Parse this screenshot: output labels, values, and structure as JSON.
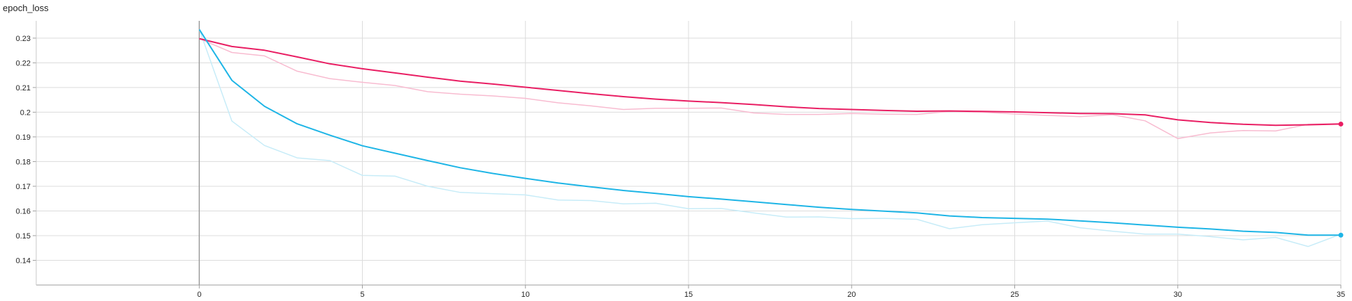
{
  "chart_data": {
    "type": "line",
    "title": "epoch_loss",
    "x_ticks": [
      0,
      5,
      10,
      15,
      20,
      25,
      30,
      35
    ],
    "y_ticks": [
      0.14,
      0.15,
      0.16,
      0.17,
      0.18,
      0.19,
      0.2,
      0.21,
      0.22,
      0.23
    ],
    "y_tick_labels": [
      "0.14",
      "0.15",
      "0.16",
      "0.17",
      "0.18",
      "0.19",
      "0.2",
      "0.21",
      "0.22",
      "0.23"
    ],
    "xlim": [
      -5,
      35
    ],
    "ylim": [
      0.13,
      0.237
    ],
    "grid": true,
    "series": [
      {
        "color": "#e91e63",
        "raw_color": "#f8bbd0",
        "x": [
          0,
          1,
          2,
          3,
          4,
          5,
          6,
          7,
          8,
          9,
          10,
          11,
          12,
          13,
          14,
          15,
          16,
          17,
          18,
          19,
          20,
          21,
          22,
          23,
          24,
          25,
          26,
          27,
          28,
          29,
          30,
          31,
          32,
          33,
          34,
          35
        ],
        "smoothed": [
          0.2298,
          0.2266,
          0.2251,
          0.2224,
          0.2196,
          0.2176,
          0.2159,
          0.2142,
          0.2126,
          0.2114,
          0.2101,
          0.2088,
          0.2075,
          0.2063,
          0.2053,
          0.2045,
          0.2039,
          0.2031,
          0.2022,
          0.2015,
          0.2011,
          0.2007,
          0.2004,
          0.2005,
          0.2003,
          0.2001,
          0.1998,
          0.1995,
          0.1994,
          0.1989,
          0.1969,
          0.1958,
          0.1951,
          0.1947,
          0.1949,
          0.1952
        ],
        "raw": [
          0.2298,
          0.2242,
          0.2228,
          0.2166,
          0.2136,
          0.2121,
          0.2108,
          0.2083,
          0.2073,
          0.2066,
          0.2056,
          0.2038,
          0.2026,
          0.2011,
          0.2016,
          0.2016,
          0.2017,
          0.1997,
          0.1991,
          0.1991,
          0.1995,
          0.1992,
          0.1991,
          0.2003,
          0.2,
          0.1993,
          0.1987,
          0.1982,
          0.199,
          0.1965,
          0.1893,
          0.1916,
          0.1926,
          0.1924,
          0.1951,
          0.1954
        ]
      },
      {
        "color": "#1eb5e6",
        "raw_color": "#c7ecf8",
        "x": [
          0,
          1,
          2,
          3,
          4,
          5,
          6,
          7,
          8,
          9,
          10,
          11,
          12,
          13,
          14,
          15,
          16,
          17,
          18,
          19,
          20,
          21,
          22,
          23,
          24,
          25,
          26,
          27,
          28,
          29,
          30,
          31,
          32,
          33,
          34,
          35
        ],
        "smoothed": [
          0.2335,
          0.2129,
          0.2024,
          0.1953,
          0.1907,
          0.1864,
          0.1834,
          0.1804,
          0.1775,
          0.1752,
          0.1732,
          0.1713,
          0.1698,
          0.1683,
          0.1671,
          0.1658,
          0.1648,
          0.1637,
          0.1626,
          0.1615,
          0.1606,
          0.1599,
          0.1592,
          0.158,
          0.1573,
          0.157,
          0.1567,
          0.156,
          0.1552,
          0.1543,
          0.1534,
          0.1527,
          0.1518,
          0.1513,
          0.1502,
          0.1502
        ],
        "raw": [
          0.2335,
          0.1964,
          0.1865,
          0.1815,
          0.1804,
          0.1744,
          0.1741,
          0.17,
          0.1675,
          0.167,
          0.1665,
          0.1644,
          0.1642,
          0.1629,
          0.1631,
          0.1609,
          0.161,
          0.1592,
          0.1575,
          0.1576,
          0.1569,
          0.157,
          0.1566,
          0.1528,
          0.1544,
          0.1552,
          0.1559,
          0.1532,
          0.1518,
          0.1506,
          0.1506,
          0.1496,
          0.1483,
          0.1493,
          0.1456,
          0.1506
        ]
      }
    ]
  }
}
